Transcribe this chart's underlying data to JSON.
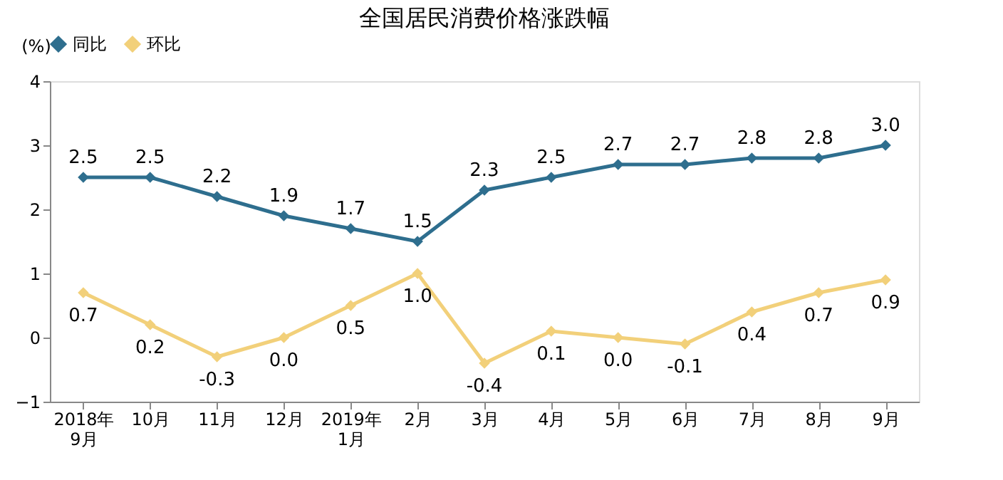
{
  "chart_data": {
    "type": "line",
    "title": "全国居民消费价格涨跌幅",
    "ylabel": "(%)",
    "categories": [
      "2018年\n9月",
      "10月",
      "11月",
      "12月",
      "2019年\n1月",
      "2月",
      "3月",
      "4月",
      "5月",
      "6月",
      "7月",
      "8月",
      "9月"
    ],
    "series": [
      {
        "name": "同比",
        "color": "#2e6e8e",
        "values": [
          2.5,
          2.5,
          2.2,
          1.9,
          1.7,
          1.5,
          2.3,
          2.5,
          2.7,
          2.7,
          2.8,
          2.8,
          3
        ],
        "value_labels": [
          "2.5",
          "2.5",
          "2.2",
          "1.9",
          "1.7",
          "1.5",
          "2.3",
          "2.5",
          "2.7",
          "2.7",
          "2.8",
          "2.8",
          "3.0"
        ]
      },
      {
        "name": "环比",
        "color": "#f2d07a",
        "values": [
          0.7,
          0.2,
          -0.3,
          0,
          0.5,
          1,
          -0.4,
          0.1,
          0,
          -0.1,
          0.4,
          0.7,
          0.9
        ],
        "value_labels": [
          "0.7",
          "0.2",
          "-0.3",
          "0.0",
          "0.5",
          "1.0",
          "-0.4",
          "0.1",
          "0.0",
          "-0.1",
          "0.4",
          "0.7",
          "0.9"
        ]
      }
    ],
    "ylim": [
      -1,
      4
    ],
    "yticks": [
      -1,
      0,
      1,
      2,
      3,
      4
    ],
    "legend": "top",
    "marker": "diamond",
    "grid": false
  }
}
